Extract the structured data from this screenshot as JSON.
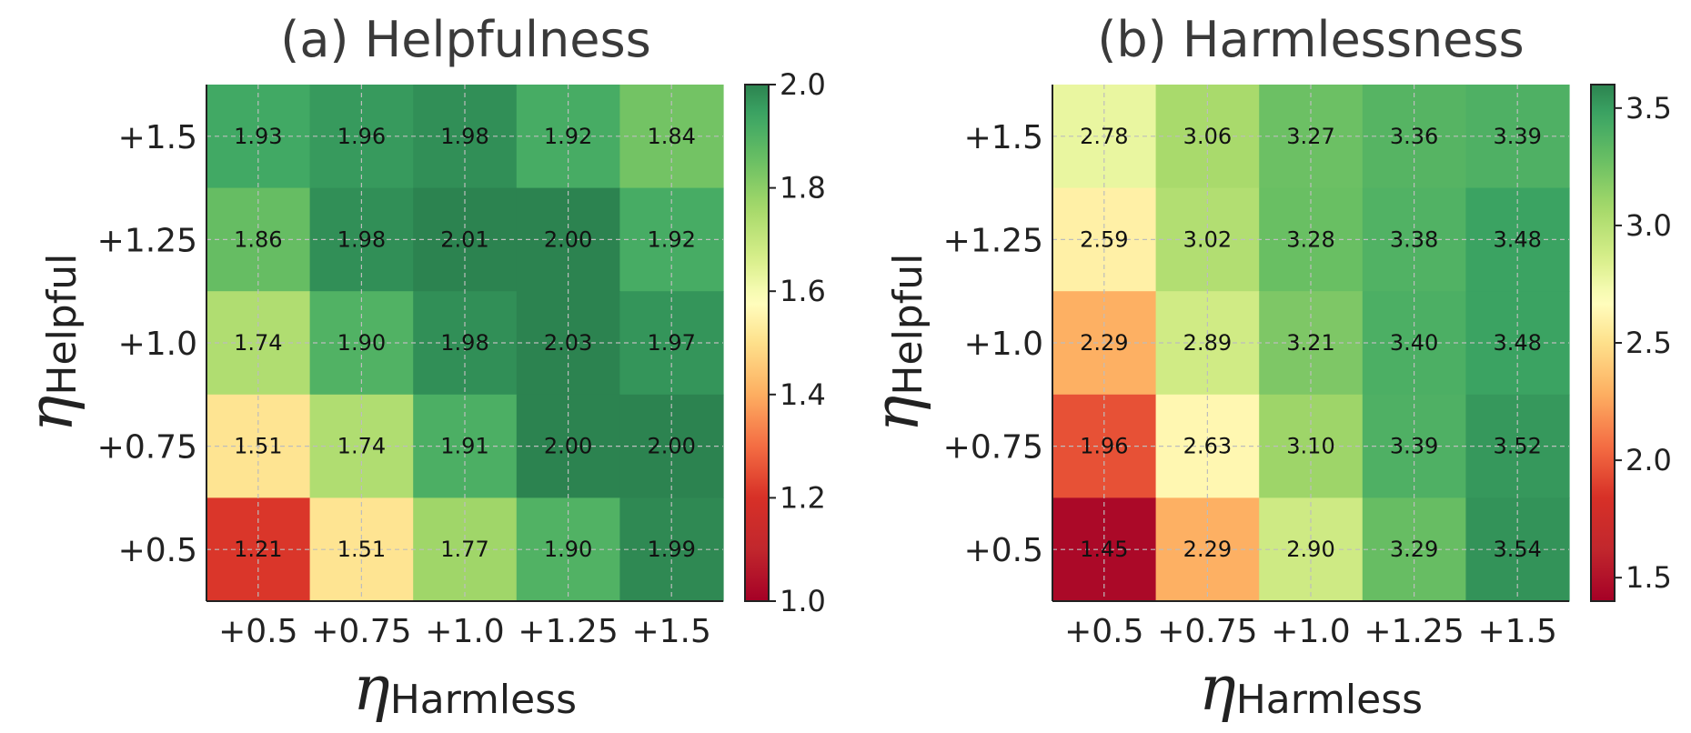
{
  "chart_data": [
    {
      "type": "heatmap",
      "title": "(a) Helpfulness",
      "xlabel": {
        "symbol": "η",
        "subscript": "Harmless"
      },
      "ylabel": {
        "symbol": "η",
        "subscript": "Helpful"
      },
      "x_categories": [
        "+0.5",
        "+0.75",
        "+1.0",
        "+1.25",
        "+1.5"
      ],
      "y_categories": [
        "+1.5",
        "+1.25",
        "+1.0",
        "+0.75",
        "+0.5"
      ],
      "values": [
        [
          1.93,
          1.96,
          1.98,
          1.92,
          1.84
        ],
        [
          1.86,
          1.98,
          2.01,
          2.0,
          1.92
        ],
        [
          1.74,
          1.9,
          1.98,
          2.03,
          1.97
        ],
        [
          1.51,
          1.74,
          1.91,
          2.0,
          2.0
        ],
        [
          1.21,
          1.51,
          1.77,
          1.9,
          1.99
        ]
      ],
      "value_labels": [
        [
          "1.93",
          "1.96",
          "1.98",
          "1.92",
          "1.84"
        ],
        [
          "1.86",
          "1.98",
          "2.01",
          "2.00",
          "1.92"
        ],
        [
          "1.74",
          "1.90",
          "1.98",
          "2.03",
          "1.97"
        ],
        [
          "1.51",
          "1.74",
          "1.91",
          "2.00",
          "2.00"
        ],
        [
          "1.21",
          "1.51",
          "1.77",
          "1.90",
          "1.99"
        ]
      ],
      "colorbar": {
        "range": [
          1.0,
          2.0
        ],
        "ticks": [
          1.0,
          1.2,
          1.4,
          1.6,
          1.8,
          2.0
        ],
        "tick_labels": [
          "1.0",
          "1.2",
          "1.4",
          "1.6",
          "1.8",
          "2.0"
        ]
      },
      "colormap": "RdYlGn",
      "grid": true
    },
    {
      "type": "heatmap",
      "title": "(b) Harmlessness",
      "xlabel": {
        "symbol": "η",
        "subscript": "Harmless"
      },
      "ylabel": {
        "symbol": "η",
        "subscript": "Helpful"
      },
      "x_categories": [
        "+0.5",
        "+0.75",
        "+1.0",
        "+1.25",
        "+1.5"
      ],
      "y_categories": [
        "+1.5",
        "+1.25",
        "+1.0",
        "+0.75",
        "+0.5"
      ],
      "values": [
        [
          2.78,
          3.06,
          3.27,
          3.36,
          3.39
        ],
        [
          2.59,
          3.02,
          3.28,
          3.38,
          3.48
        ],
        [
          2.29,
          2.89,
          3.21,
          3.4,
          3.48
        ],
        [
          1.96,
          2.63,
          3.1,
          3.39,
          3.52
        ],
        [
          1.45,
          2.29,
          2.9,
          3.29,
          3.54
        ]
      ],
      "value_labels": [
        [
          "2.78",
          "3.06",
          "3.27",
          "3.36",
          "3.39"
        ],
        [
          "2.59",
          "3.02",
          "3.28",
          "3.38",
          "3.48"
        ],
        [
          "2.29",
          "2.89",
          "3.21",
          "3.40",
          "3.48"
        ],
        [
          "1.96",
          "2.63",
          "3.10",
          "3.39",
          "3.52"
        ],
        [
          "1.45",
          "2.29",
          "2.90",
          "3.29",
          "3.54"
        ]
      ],
      "colorbar": {
        "range": [
          1.4,
          3.6
        ],
        "ticks": [
          1.5,
          2.0,
          2.5,
          3.0,
          3.5
        ],
        "tick_labels": [
          "1.5",
          "2.0",
          "2.5",
          "3.0",
          "3.5"
        ]
      },
      "colormap": "RdYlGn",
      "grid": true
    }
  ]
}
